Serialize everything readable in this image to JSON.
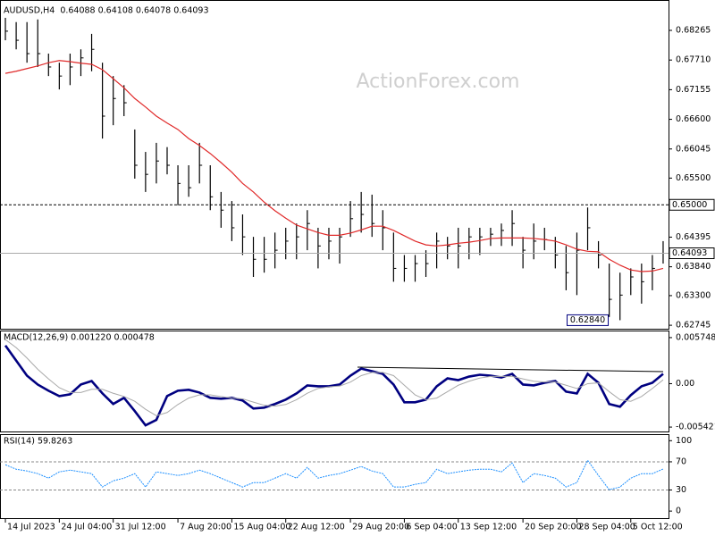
{
  "chart_data": [
    {
      "type": "hlc",
      "title": "AUDUSD,H4  0.64088 0.64108 0.64078 0.64093",
      "watermark": "ActionForex.com",
      "xlim": [
        -0.5,
        61.5
      ],
      "xticks": [
        {
          "value": 0,
          "label": "14 Jul 2023"
        },
        {
          "value": 5,
          "label": "24 Jul 04:00"
        },
        {
          "value": 10,
          "label": "31 Jul 12:00"
        },
        {
          "value": 16,
          "label": "7 Aug 20:00"
        },
        {
          "value": 21,
          "label": "15 Aug 04:00"
        },
        {
          "value": 26,
          "label": "22 Aug 12:00"
        },
        {
          "value": 32,
          "label": "29 Aug 20:00"
        },
        {
          "value": 37,
          "label": "6 Sep 04:00"
        },
        {
          "value": 42,
          "label": "13 Sep 12:00"
        },
        {
          "value": 48,
          "label": "20 Sep 20:00"
        },
        {
          "value": 53,
          "label": "28 Sep 04:00"
        },
        {
          "value": 58,
          "label": "5 Oct 12:00"
        }
      ],
      "ylim": [
        0.6268,
        0.6875
      ],
      "yticks": [
        0.68265,
        {
          "value": 0.6771,
          "label": "0.67710"
        },
        0.67155,
        {
          "value": 0.666,
          "label": "0.66600"
        },
        0.66045,
        {
          "value": 0.655,
          "label": "0.65500"
        },
        0.64395,
        {
          "value": 0.6384,
          "label": "0.63840"
        },
        {
          "value": 0.633,
          "label": "0.63300"
        },
        0.62745
      ],
      "color": "#000000",
      "high": [
        0.685,
        0.6842,
        0.6842,
        0.6847,
        0.6783,
        0.6766,
        0.6783,
        0.6791,
        0.682,
        0.6766,
        0.6741,
        0.6724,
        0.6641,
        0.6599,
        0.6616,
        0.6608,
        0.6574,
        0.6574,
        0.6616,
        0.6574,
        0.6524,
        0.6507,
        0.6482,
        0.644,
        0.644,
        0.6448,
        0.6457,
        0.6465,
        0.649,
        0.6457,
        0.6457,
        0.6457,
        0.6507,
        0.6524,
        0.6519,
        0.649,
        0.6448,
        0.6406,
        0.6406,
        0.6415,
        0.6448,
        0.644,
        0.6457,
        0.6457,
        0.6457,
        0.6457,
        0.6465,
        0.649,
        0.644,
        0.6465,
        0.6457,
        0.644,
        0.6423,
        0.6448,
        0.6495,
        0.6432,
        0.639,
        0.6373,
        0.6381,
        0.639,
        0.6406,
        0.6432
      ],
      "low": [
        0.6808,
        0.6791,
        0.6766,
        0.6758,
        0.6741,
        0.6716,
        0.6724,
        0.6741,
        0.675,
        0.6624,
        0.6649,
        0.6666,
        0.6549,
        0.6524,
        0.654,
        0.6557,
        0.6499,
        0.6515,
        0.654,
        0.649,
        0.6457,
        0.6432,
        0.6406,
        0.6365,
        0.6373,
        0.6381,
        0.6398,
        0.6398,
        0.6415,
        0.6381,
        0.6398,
        0.639,
        0.644,
        0.6448,
        0.644,
        0.6415,
        0.6356,
        0.6356,
        0.6356,
        0.6365,
        0.6381,
        0.6398,
        0.6381,
        0.6398,
        0.6406,
        0.6423,
        0.6423,
        0.6423,
        0.6381,
        0.6398,
        0.6415,
        0.6381,
        0.634,
        0.6331,
        0.6415,
        0.6381,
        0.629,
        0.6284,
        0.6331,
        0.6315,
        0.634,
        0.639
      ],
      "close": [
        0.6825,
        0.6808,
        0.6783,
        0.6783,
        0.6758,
        0.6741,
        0.6758,
        0.6775,
        0.6791,
        0.6666,
        0.6699,
        0.6691,
        0.6574,
        0.6557,
        0.6582,
        0.6574,
        0.654,
        0.6532,
        0.6574,
        0.6515,
        0.649,
        0.6457,
        0.644,
        0.6398,
        0.6398,
        0.6415,
        0.6432,
        0.644,
        0.6465,
        0.6423,
        0.6432,
        0.644,
        0.6474,
        0.6482,
        0.6465,
        0.6457,
        0.6381,
        0.6381,
        0.639,
        0.639,
        0.6432,
        0.6423,
        0.6423,
        0.644,
        0.644,
        0.6445,
        0.6452,
        0.6465,
        0.6415,
        0.6432,
        0.6435,
        0.6406,
        0.6373,
        0.6415,
        0.6457,
        0.6406,
        0.6323,
        0.6331,
        0.6365,
        0.6356,
        0.6381,
        0.64093
      ],
      "overlay": {
        "color": "#e02a2a",
        "values": [
          0.6746,
          0.675,
          0.6755,
          0.676,
          0.6766,
          0.677,
          0.6768,
          0.6765,
          0.6763,
          0.6753,
          0.6736,
          0.6719,
          0.6699,
          0.6683,
          0.6666,
          0.6653,
          0.6641,
          0.6624,
          0.6611,
          0.6596,
          0.6579,
          0.6561,
          0.654,
          0.6524,
          0.6505,
          0.6489,
          0.6475,
          0.6462,
          0.6455,
          0.6448,
          0.6443,
          0.6443,
          0.6447,
          0.6453,
          0.646,
          0.646,
          0.6452,
          0.6442,
          0.6432,
          0.6425,
          0.6423,
          0.6425,
          0.6428,
          0.643,
          0.6433,
          0.6437,
          0.6438,
          0.6438,
          0.6438,
          0.6437,
          0.6435,
          0.6432,
          0.6425,
          0.6417,
          0.6413,
          0.6412,
          0.6398,
          0.6387,
          0.6378,
          0.6375,
          0.6376,
          0.6381
        ]
      },
      "hlines": [
        {
          "value": 0.65,
          "label": "0.65000",
          "style": "dashed"
        },
        {
          "value": 0.64093,
          "label": "0.64093",
          "style": "solid"
        }
      ],
      "low_note": {
        "x": 54,
        "value": 0.6284,
        "label": "0.62840"
      }
    },
    {
      "type": "macd",
      "title": "MACD(12,26,9) 0.001220 0.000478",
      "ylim": [
        -0.00597,
        0.00652
      ],
      "yticks": [
        0.005748,
        {
          "value": 0,
          "label": "0.00"
        },
        -0.005421
      ],
      "series": [
        {
          "color": "#000080",
          "values": [
            0.00476,
            0.00288,
            0.001,
            -0.00011,
            -0.00088,
            -0.00155,
            -0.00133,
            -0.00011,
            0.00033,
            -0.00122,
            -0.00254,
            -0.00177,
            -0.00343,
            -0.0052,
            -0.00453,
            -0.00155,
            -0.00088,
            -0.00077,
            -0.00111,
            -0.00177,
            -0.00188,
            -0.00177,
            -0.0021,
            -0.0031,
            -0.00299,
            -0.00254,
            -0.00199,
            -0.00122,
            -0.00022,
            -0.00033,
            -0.00033,
            -0.00011,
            0.001,
            0.00188,
            0.00155,
            0.00122,
            -0.00011,
            -0.00232,
            -0.00232,
            -0.00199,
            -0.00033,
            0.00066,
            0.00044,
            0.00088,
            0.00111,
            0.001,
            0.00077,
            0.00122,
            -0.00011,
            -0.00022,
            0.00011,
            0.00033,
            -0.001,
            -0.00122,
            0.00122,
            0.00011,
            -0.00254,
            -0.00288,
            -0.00144,
            -0.00033,
            0.00011,
            0.00122
          ]
        },
        {
          "color": "#a9a9a9",
          "values": [
            0.0055,
            0.0045,
            0.0032,
            0.0018,
            0.0006,
            -0.0005,
            -0.0011,
            -0.0011,
            -0.0007,
            -0.0007,
            -0.0012,
            -0.0016,
            -0.0022,
            -0.0032,
            -0.004,
            -0.0036,
            -0.0026,
            -0.0018,
            -0.0014,
            -0.0014,
            -0.0016,
            -0.0018,
            -0.0019,
            -0.0023,
            -0.0027,
            -0.0028,
            -0.0026,
            -0.002,
            -0.0012,
            -0.0006,
            -0.0004,
            -0.0003,
            0.0002,
            0.001,
            0.0014,
            0.0014,
            0.001,
            -0.0002,
            -0.0014,
            -0.002,
            -0.0018,
            -0.001,
            -0.0002,
            0.0003,
            0.0007,
            0.0009,
            0.0009,
            0.0009,
            0.0006,
            0.0003,
            0.0002,
            0.0002,
            -0.0002,
            -0.0006,
            0.0,
            0.0001,
            -0.001,
            -0.002,
            -0.0022,
            -0.0016,
            -0.0006,
            0.000478
          ]
        }
      ]
    },
    {
      "type": "line",
      "title": "RSI(14) 59.8263",
      "ylim": [
        -10,
        108
      ],
      "yticks": [
        0,
        30,
        70,
        100
      ],
      "levels": [
        30,
        70
      ],
      "color": "#1e90ff",
      "values": [
        65.8,
        59.5,
        57.0,
        53.2,
        46.8,
        55.7,
        58.2,
        55.7,
        53.2,
        34.2,
        43.0,
        46.8,
        53.2,
        34.2,
        55.7,
        53.2,
        50.6,
        53.2,
        58.2,
        53.2,
        46.8,
        40.5,
        34.2,
        40.5,
        40.5,
        46.8,
        53.2,
        46.8,
        62.0,
        46.8,
        50.6,
        53.2,
        58.2,
        63.3,
        57.0,
        53.2,
        34.2,
        34.2,
        38.0,
        40.5,
        59.5,
        53.2,
        55.7,
        58.2,
        59.5,
        59.5,
        55.7,
        68.4,
        40.5,
        53.2,
        50.6,
        46.8,
        34.2,
        40.5,
        72.2,
        50.6,
        30.4,
        34.2,
        46.8,
        53.2,
        53.2,
        59.8
      ]
    }
  ]
}
